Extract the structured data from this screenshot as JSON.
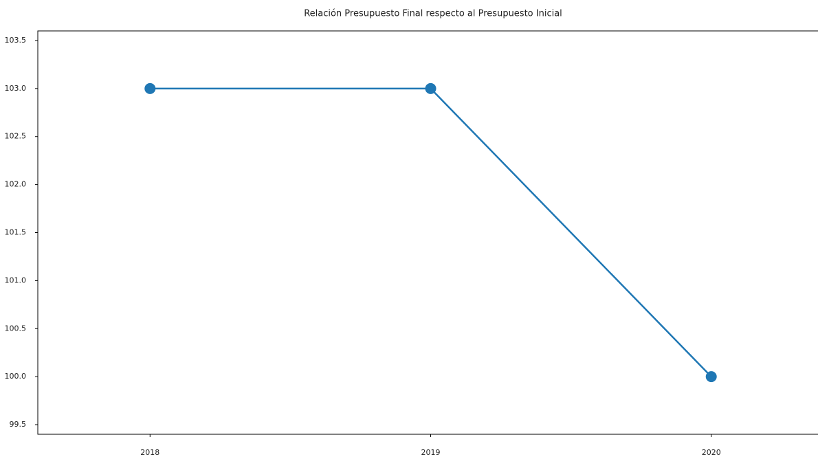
{
  "chart_data": {
    "type": "line",
    "title": "Relación Presupuesto Final respecto al Presupuesto Inicial",
    "x": [
      2018,
      2019,
      2020
    ],
    "series": [
      {
        "color": "#1f77b4",
        "values": [
          103,
          103,
          100
        ]
      }
    ],
    "xlim": [
      2017.6,
      2020.4
    ],
    "xticks": [
      2018,
      2019,
      2020
    ],
    "ylim": [
      99.4,
      103.6
    ],
    "yticks": [
      99.5,
      {
        "value": 100,
        "label": "100.0"
      },
      100.5,
      {
        "value": 101,
        "label": "101.0"
      },
      101.5,
      {
        "value": 102,
        "label": "102.0"
      },
      102.5,
      {
        "value": 103,
        "label": "103.0"
      },
      103.5
    ],
    "grid": false
  }
}
